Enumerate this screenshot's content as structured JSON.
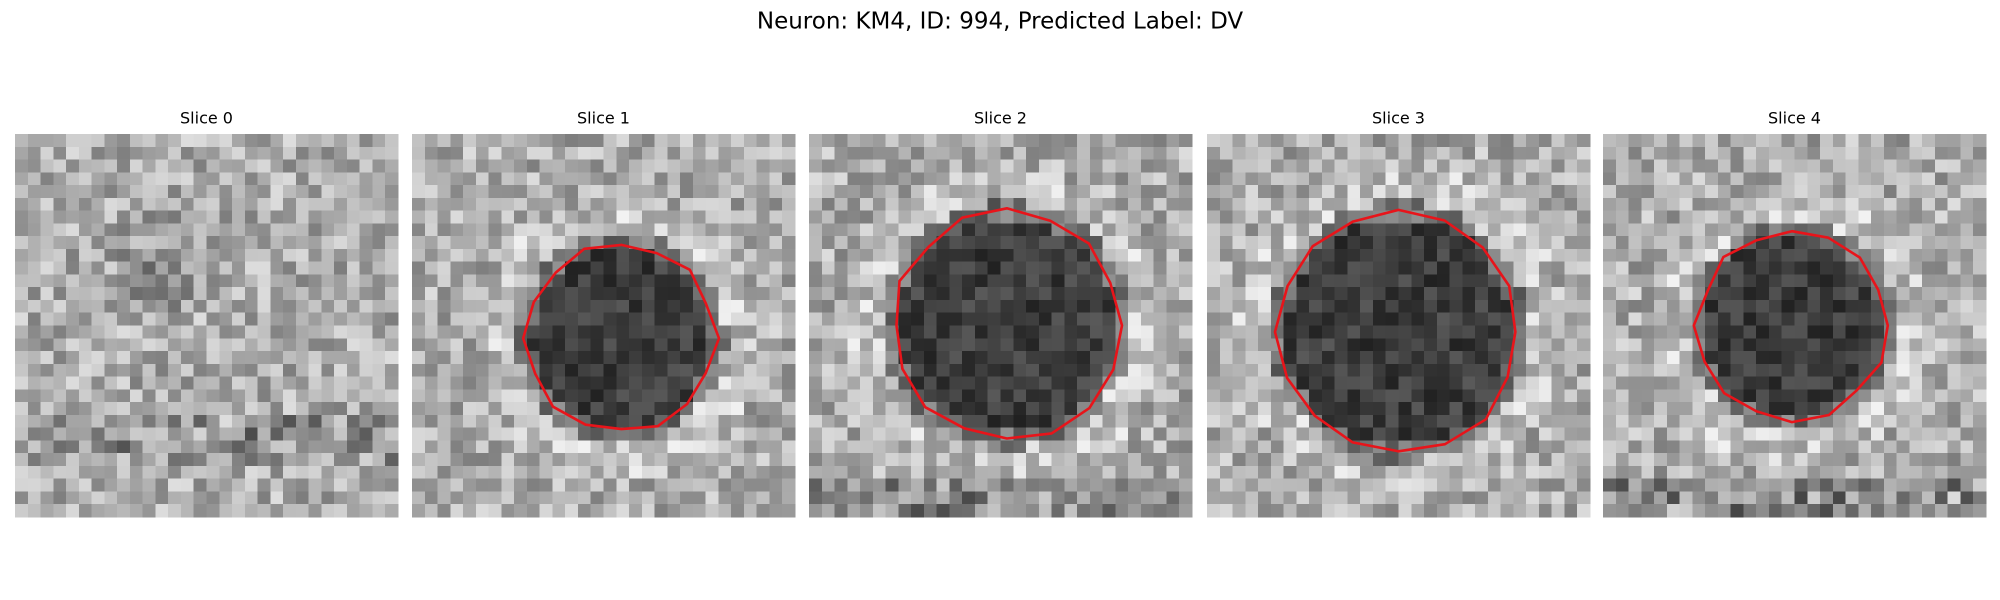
{
  "header": {
    "title": "Neuron: KM4, ID: 994, Predicted Label: DV"
  },
  "panels": [
    {
      "label": "Slice 0"
    },
    {
      "label": "Slice 1"
    },
    {
      "label": "Slice 2"
    },
    {
      "label": "Slice 3"
    },
    {
      "label": "Slice 4"
    }
  ]
}
